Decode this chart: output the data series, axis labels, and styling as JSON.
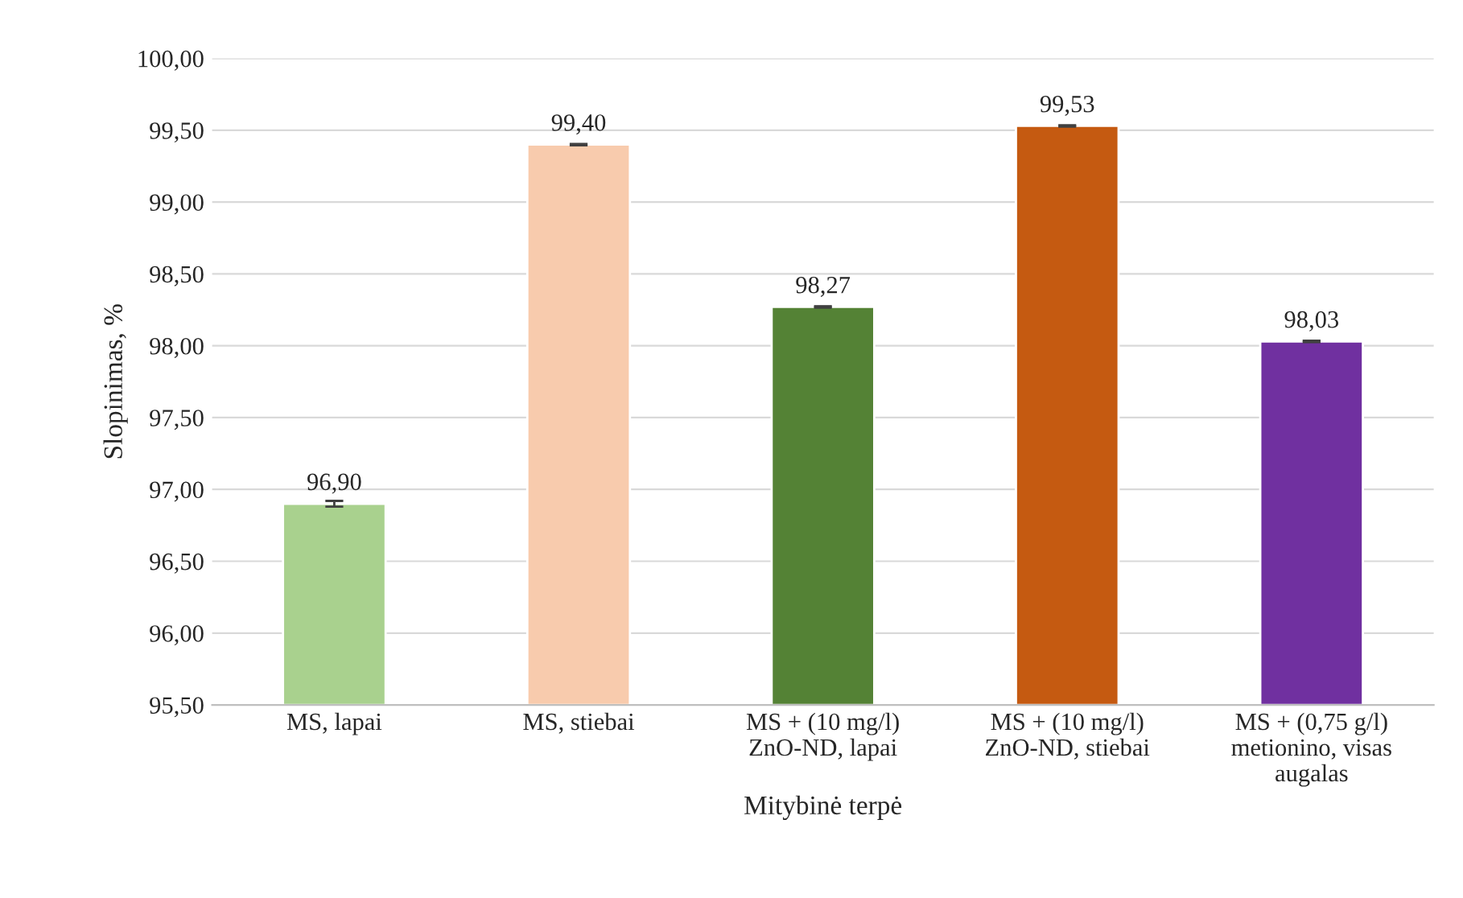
{
  "chart_data": {
    "type": "bar",
    "categories": [
      "MS, lapai",
      "MS, stiebai",
      "MS + (10 mg/l)\nZnO-ND, lapai",
      "MS + (10 mg/l)\nZnO-ND, stiebai",
      "MS + (0,75 g/l)\nmetionino, visas\naugalas"
    ],
    "values": [
      96.9,
      99.4,
      98.27,
      99.53,
      98.03
    ],
    "colors": [
      "#a9d18e",
      "#f8cbad",
      "#548235",
      "#c55a11",
      "#7030a0"
    ],
    "errors": [
      0.02,
      0.005,
      0.005,
      0.005,
      0.005
    ],
    "value_labels": [
      "96,90",
      "99,40",
      "98,27",
      "99,53",
      "98,03"
    ],
    "xlabel": "Mitybinė terpė",
    "ylabel": "Slopinimas, %",
    "ylim": [
      95.5,
      100.0
    ],
    "yticks": [
      {
        "value": 95.5,
        "label": "95,50"
      },
      {
        "value": 96.0,
        "label": "96,00"
      },
      {
        "value": 96.5,
        "label": "96,50"
      },
      {
        "value": 97.0,
        "label": "97,00"
      },
      {
        "value": 97.5,
        "label": "97,50"
      },
      {
        "value": 98.0,
        "label": "98,00"
      },
      {
        "value": 98.5,
        "label": "98,50"
      },
      {
        "value": 99.0,
        "label": "99,00"
      },
      {
        "value": 99.5,
        "label": "99,50"
      },
      {
        "value": 100.0,
        "label": "100,00"
      }
    ],
    "grid": "y",
    "legend": false
  }
}
